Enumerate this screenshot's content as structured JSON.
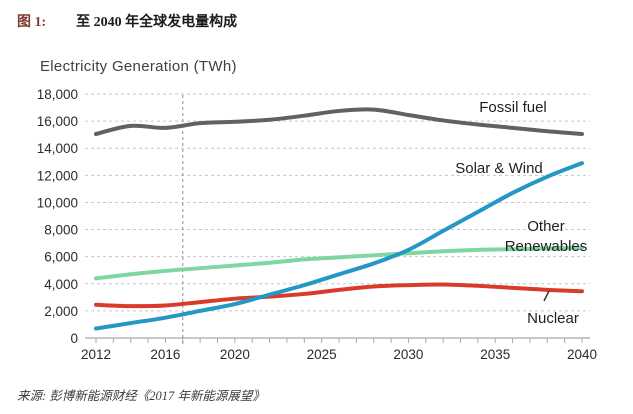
{
  "header": {
    "figure_label": "图 1:",
    "title": "至 2040 年全球发电量构成"
  },
  "footer": {
    "source": "来源: 彭博新能源财经《2017 年新能源展望》"
  },
  "chart_data": {
    "type": "line",
    "title": "Electricity Generation (TWh)",
    "xlabel": "",
    "ylabel": "TWh",
    "ylim": [
      0,
      18000
    ],
    "xlim": [
      2011.4,
      2040.5
    ],
    "grid": "horizontal-dashed",
    "legend_position": "inline-labels",
    "forecast_divider_year": 2017,
    "x": [
      2012,
      2014,
      2016,
      2018,
      2020,
      2022,
      2024,
      2026,
      2028,
      2030,
      2032,
      2034,
      2036,
      2038,
      2040
    ],
    "x_tick_years": [
      2012,
      2016,
      2020,
      2025,
      2030,
      2035,
      2040
    ],
    "x_tick_labels": [
      "2012",
      "2016",
      "2020",
      "2025",
      "2030",
      "2035",
      "2040"
    ],
    "y_ticks": [
      0,
      2000,
      4000,
      6000,
      8000,
      10000,
      12000,
      14000,
      16000,
      18000
    ],
    "y_tick_labels": [
      "0",
      "2,000",
      "4,000",
      "6,000",
      "8,000",
      "10,000",
      "12,000",
      "14,000",
      "16,000",
      "18,000"
    ],
    "series": [
      {
        "name": "Fossil fuel",
        "color": "#616161",
        "values": [
          15050,
          15650,
          15500,
          15850,
          15950,
          16100,
          16400,
          16750,
          16850,
          16450,
          16050,
          15750,
          15500,
          15250,
          15050
        ]
      },
      {
        "name": "Other Renewables",
        "color": "#7fd6a0",
        "values": [
          4400,
          4700,
          4950,
          5150,
          5350,
          5550,
          5800,
          5950,
          6100,
          6250,
          6400,
          6500,
          6550,
          6600,
          6650
        ]
      },
      {
        "name": "Nuclear",
        "color": "#d93b2b",
        "values": [
          2450,
          2350,
          2400,
          2650,
          2900,
          3050,
          3250,
          3550,
          3800,
          3900,
          3950,
          3850,
          3700,
          3550,
          3450
        ]
      },
      {
        "name": "Solar & Wind",
        "color": "#2597c4",
        "values": [
          700,
          1100,
          1500,
          2000,
          2500,
          3200,
          3900,
          4700,
          5500,
          6500,
          7900,
          9300,
          10700,
          11900,
          12900
        ]
      }
    ],
    "annotations": {
      "fossil_fuel": "Fossil fuel",
      "solar_wind": "Solar & Wind",
      "other_renewables_line1": "Other",
      "other_renewables_line2": "Renewables",
      "nuclear": "Nuclear"
    }
  }
}
